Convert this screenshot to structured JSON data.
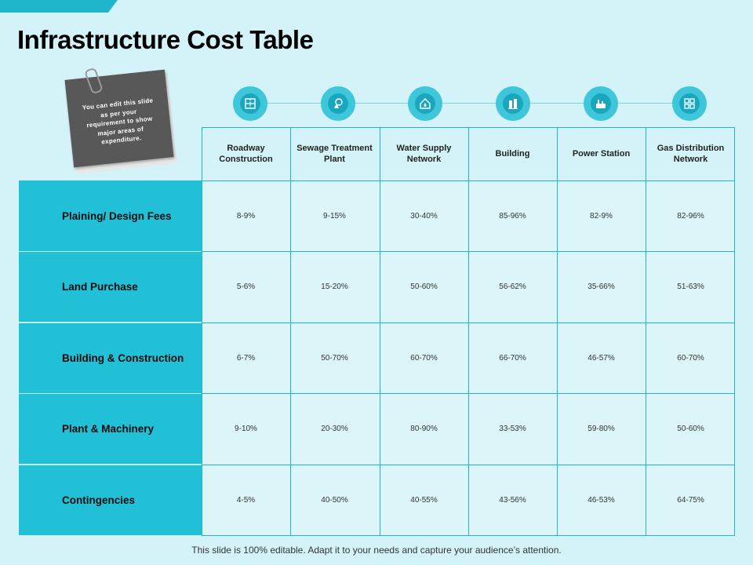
{
  "title": "Infrastructure Cost Table",
  "note": "You can edit this slide as per your requirement to show major areas of expenditure.",
  "columns": [
    {
      "label": "Roadway Construction",
      "icon": "road-icon"
    },
    {
      "label": "Sewage Treatment Plant",
      "icon": "sewage-plant-icon"
    },
    {
      "label": "Water Supply Network",
      "icon": "water-supply-icon"
    },
    {
      "label": "Building",
      "icon": "building-icon"
    },
    {
      "label": "Power Station",
      "icon": "power-station-icon"
    },
    {
      "label": "Gas Distribution Network",
      "icon": "gas-network-icon"
    }
  ],
  "rows": [
    {
      "label": "Plaining/ Design Fees",
      "values": [
        "8-9%",
        "9-15%",
        "30-40%",
        "85-96%",
        "82-9%",
        "82-96%"
      ]
    },
    {
      "label": "Land Purchase",
      "values": [
        "5-6%",
        "15-20%",
        "50-60%",
        "56-62%",
        "35-66%",
        "51-63%"
      ]
    },
    {
      "label": "Building & Construction",
      "values": [
        "6-7%",
        "50-70%",
        "60-70%",
        "66-70%",
        "46-57%",
        "60-70%"
      ]
    },
    {
      "label": "Plant & Machinery",
      "values": [
        "9-10%",
        "20-30%",
        "80-90%",
        "33-53%",
        "59-80%",
        "50-60%"
      ]
    },
    {
      "label": "Contingencies",
      "values": [
        "4-5%",
        "40-50%",
        "40-55%",
        "43-56%",
        "46-53%",
        "64-75%"
      ]
    }
  ],
  "footer": "This slide is 100% editable. Adapt it to your needs and capture your audience’s attention.",
  "colors": {
    "accent": "#22c0d6",
    "background": "#d3f3f8",
    "note": "#585858"
  }
}
